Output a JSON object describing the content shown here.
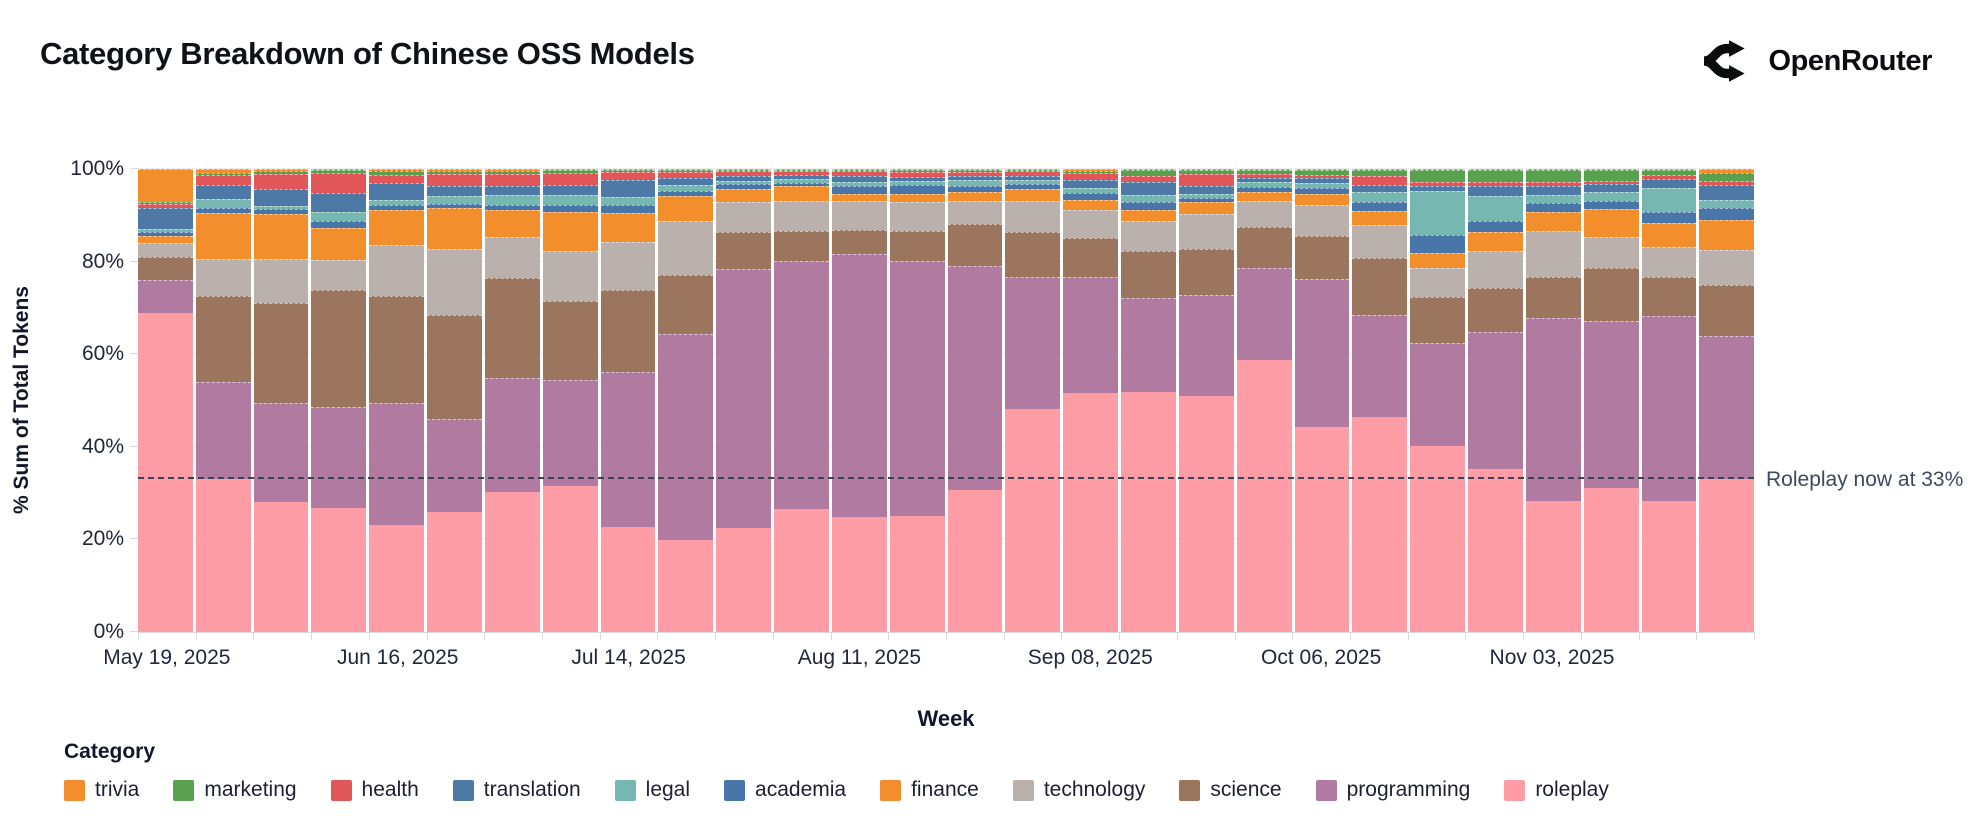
{
  "header": {
    "title": "Category Breakdown of Chinese OSS Models",
    "brand": "OpenRouter"
  },
  "chart_data": {
    "type": "bar",
    "stacked": true,
    "normalized_percent": true,
    "title": "Category Breakdown of Chinese OSS Models",
    "xlabel": "Week",
    "ylabel": "% Sum of Total Tokens",
    "ylim": [
      0,
      100
    ],
    "grid": true,
    "legend_position": "bottom",
    "ytick_labels": [
      "0%",
      "20%",
      "40%",
      "60%",
      "80%",
      "100%"
    ],
    "xtick_labels": [
      "May 19, 2025",
      "Jun 16, 2025",
      "Jul 14, 2025",
      "Aug 11, 2025",
      "Sep 08, 2025",
      "Oct 06, 2025",
      "Nov 03, 2025"
    ],
    "xtick_bar_indices": [
      0,
      4,
      8,
      12,
      16,
      20,
      24
    ],
    "annotation": {
      "text": "Roleplay now at 33%",
      "y": 33,
      "style": "dashed-line"
    },
    "categories": [
      "May 19, 2025",
      "May 26, 2025",
      "Jun 02, 2025",
      "Jun 09, 2025",
      "Jun 16, 2025",
      "Jun 23, 2025",
      "Jun 30, 2025",
      "Jul 07, 2025",
      "Jul 14, 2025",
      "Jul 21, 2025",
      "Jul 28, 2025",
      "Aug 04, 2025",
      "Aug 11, 2025",
      "Aug 18, 2025",
      "Aug 25, 2025",
      "Sep 01, 2025",
      "Sep 08, 2025",
      "Sep 15, 2025",
      "Sep 22, 2025",
      "Sep 29, 2025",
      "Oct 06, 2025",
      "Oct 13, 2025",
      "Oct 20, 2025",
      "Oct 27, 2025",
      "Nov 03, 2025",
      "Nov 10, 2025",
      "Nov 17, 2025",
      "Nov 24, 2025"
    ],
    "stack_order_note": "series listed bottom-to-top of the stack",
    "series": [
      {
        "name": "roleplay",
        "color": "#ff9da7",
        "values": [
          69,
          33,
          28,
          26.7,
          23.1,
          26,
          30.3,
          31.6,
          22.7,
          19.8,
          22.5,
          26.5,
          24.9,
          25.1,
          30.6,
          48.3,
          51.6,
          51.9,
          51,
          58.8,
          44.3,
          46.5,
          40.2,
          35.3,
          28.3,
          31,
          28.3,
          33
        ]
      },
      {
        "name": "programming",
        "color": "#b07aa1",
        "values": [
          7,
          21,
          21.5,
          22,
          26.3,
          20.1,
          24.6,
          22.8,
          33.5,
          44.7,
          56.1,
          53.7,
          56.7,
          55.1,
          48.5,
          28.5,
          25,
          20.2,
          21.8,
          19.9,
          32.1,
          22,
          22.2,
          29.6,
          39.6,
          36.1,
          40,
          31
        ]
      },
      {
        "name": "science",
        "color": "#9c755f",
        "values": [
          5,
          18.5,
          21.5,
          25.2,
          23.1,
          22.4,
          21.5,
          17.1,
          17.7,
          12.8,
          7.8,
          6.5,
          5.3,
          6.5,
          9.2,
          9.6,
          8.5,
          10.2,
          10.1,
          8.9,
          9.3,
          12.4,
          9.9,
          9.5,
          8.7,
          11.5,
          8.3,
          11
        ]
      },
      {
        "name": "technology",
        "color": "#bab0ac",
        "values": [
          3,
          8,
          9.5,
          6.5,
          11.1,
          14.3,
          9,
          10.8,
          10.5,
          11.5,
          6.5,
          6.4,
          6.1,
          6.2,
          4.8,
          6.7,
          6.1,
          6.4,
          7.4,
          5.5,
          6.7,
          7.2,
          6.3,
          7.9,
          10.1,
          6.8,
          6.5,
          7.6
        ]
      },
      {
        "name": "finance",
        "color": "#f28e2b",
        "values": [
          1.5,
          10,
          9.7,
          6.8,
          7.6,
          8.8,
          5.8,
          8.4,
          6.3,
          5.4,
          3,
          3.3,
          1.6,
          1.9,
          2.1,
          2.6,
          2.2,
          2.5,
          2.7,
          2.1,
          2.4,
          2.9,
          3.2,
          4.1,
          4,
          5.9,
          5.2,
          6.5
        ]
      },
      {
        "name": "academia",
        "color": "#4876a9",
        "values": [
          1,
          1,
          1.1,
          1.5,
          1.1,
          0.9,
          1.1,
          1.6,
          1.6,
          1.2,
          0.9,
          0.8,
          1.7,
          1.8,
          1.3,
          1.2,
          1.4,
          1.7,
          0.9,
          1.1,
          1.1,
          1.9,
          4,
          2.3,
          1.9,
          1.8,
          2.4,
          2.4
        ]
      },
      {
        "name": "legal",
        "color": "#76b7b2",
        "values": [
          0.5,
          2,
          0.7,
          2,
          1.1,
          1.6,
          2.2,
          2,
          1.8,
          1.2,
          0.7,
          0.7,
          0.9,
          0.9,
          1.2,
          0.9,
          1.2,
          1.4,
          0.9,
          0.9,
          1.1,
          2.3,
          9.4,
          5.4,
          1.8,
          2,
          5.2,
          1.9
        ]
      },
      {
        "name": "translation",
        "color": "#4e79a7",
        "values": [
          4.5,
          3,
          3.6,
          4.1,
          3.6,
          2.2,
          1.8,
          2.3,
          3.6,
          1.6,
          1.2,
          0.9,
          1.4,
          0.9,
          0.9,
          0.9,
          1.7,
          2.9,
          1.7,
          1,
          1.2,
          1.4,
          1.1,
          2.2,
          1.9,
          1.6,
          2,
          3.1
        ]
      },
      {
        "name": "health",
        "color": "#e15759",
        "values": [
          1,
          2.2,
          3.4,
          4.3,
          1.8,
          2.7,
          2.7,
          2.5,
          1.8,
          1.3,
          1,
          0.9,
          0.9,
          1.1,
          0.9,
          0.9,
          1.4,
          1.2,
          2.5,
          0.9,
          0.7,
          2,
          0.9,
          0.9,
          0.8,
          0.7,
          0.9,
          0.9
        ]
      },
      {
        "name": "marketing",
        "color": "#59a14f",
        "values": [
          0.3,
          0.5,
          0.6,
          0.6,
          0.7,
          0.6,
          0.6,
          0.7,
          0.4,
          0.4,
          0.2,
          0.2,
          0.3,
          0.4,
          0.4,
          0.3,
          0.5,
          1.4,
          0.9,
          0.8,
          1,
          1.3,
          2.5,
          2.6,
          2.7,
          2.4,
          1,
          1.7
        ]
      },
      {
        "name": "trivia",
        "color": "#f28e2b",
        "values": [
          7.2,
          0.8,
          0.4,
          0.3,
          0.5,
          0.4,
          0.4,
          0.2,
          0.1,
          0.1,
          0.1,
          0.1,
          0.2,
          0.1,
          0.1,
          0.1,
          0.4,
          0.2,
          0.1,
          0.1,
          0.1,
          0.1,
          0.3,
          0.2,
          0.2,
          0.2,
          0.2,
          0.9
        ]
      }
    ]
  },
  "legend": {
    "title": "Category",
    "items": [
      {
        "label": "trivia",
        "color": "#f28e2b"
      },
      {
        "label": "marketing",
        "color": "#59a14f"
      },
      {
        "label": "health",
        "color": "#e15759"
      },
      {
        "label": "translation",
        "color": "#4e79a7"
      },
      {
        "label": "legal",
        "color": "#76b7b2"
      },
      {
        "label": "academia",
        "color": "#4876a9"
      },
      {
        "label": "finance",
        "color": "#f28e2b"
      },
      {
        "label": "technology",
        "color": "#bab0ac"
      },
      {
        "label": "science",
        "color": "#9c755f"
      },
      {
        "label": "programming",
        "color": "#b07aa1"
      },
      {
        "label": "roleplay",
        "color": "#ff9da7"
      }
    ]
  }
}
